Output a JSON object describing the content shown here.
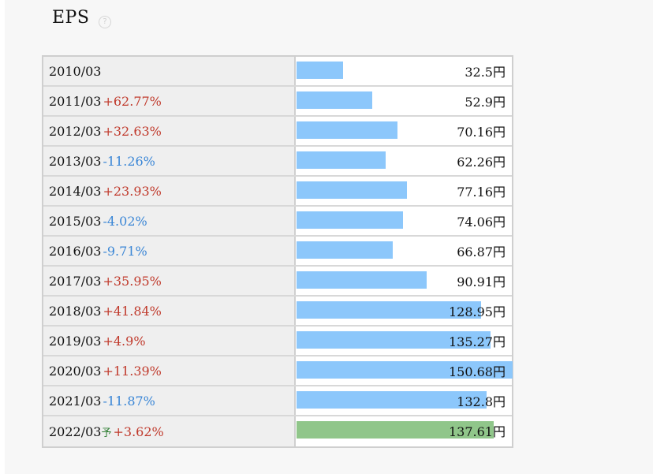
{
  "title": "EPS",
  "help_icon": "?",
  "chart_data": {
    "type": "bar",
    "orientation": "horizontal",
    "title": "EPS",
    "unit": "円",
    "colors": {
      "actual": "#8cc7fb",
      "forecast": "#90c68a",
      "up": "#c0392b",
      "down": "#3a86d6"
    },
    "rows": [
      {
        "period": "2010/03",
        "change": "",
        "value": 32.5,
        "value_label": "32.5円"
      },
      {
        "period": "2011/03",
        "change": "+62.77%",
        "value": 52.9,
        "value_label": "52.9円"
      },
      {
        "period": "2012/03",
        "change": "+32.63%",
        "value": 70.16,
        "value_label": "70.16円"
      },
      {
        "period": "2013/03",
        "change": "-11.26%",
        "value": 62.26,
        "value_label": "62.26円"
      },
      {
        "period": "2014/03",
        "change": "+23.93%",
        "value": 77.16,
        "value_label": "77.16円"
      },
      {
        "period": "2015/03",
        "change": "-4.02%",
        "value": 74.06,
        "value_label": "74.06円"
      },
      {
        "period": "2016/03",
        "change": "-9.71%",
        "value": 66.87,
        "value_label": "66.87円"
      },
      {
        "period": "2017/03",
        "change": "+35.95%",
        "value": 90.91,
        "value_label": "90.91円"
      },
      {
        "period": "2018/03",
        "change": "+41.84%",
        "value": 128.95,
        "value_label": "128.95円"
      },
      {
        "period": "2019/03",
        "change": "+4.9%",
        "value": 135.27,
        "value_label": "135.27円"
      },
      {
        "period": "2020/03",
        "change": "+11.39%",
        "value": 150.68,
        "value_label": "150.68円"
      },
      {
        "period": "2021/03",
        "change": "-11.87%",
        "value": 132.8,
        "value_label": "132.8円"
      },
      {
        "period": "2022/03",
        "forecast_mark": "予",
        "change": "+3.62%",
        "value": 137.61,
        "value_label": "137.61円",
        "forecast": true
      }
    ]
  }
}
